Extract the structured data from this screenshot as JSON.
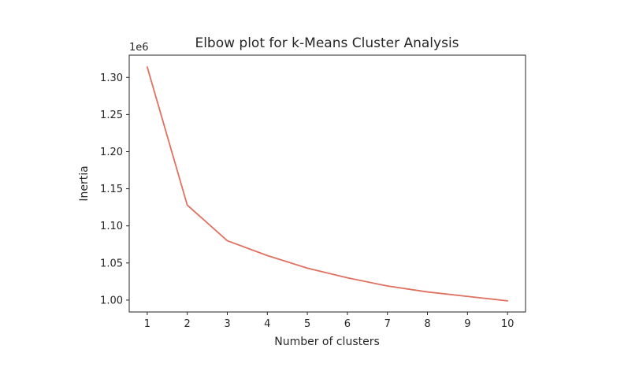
{
  "chart_data": {
    "type": "line",
    "title": "Elbow plot for k-Means Cluster Analysis",
    "xlabel": "Number of clusters",
    "ylabel": "Inertia",
    "y_offset_label": "1e6",
    "x": [
      1,
      2,
      3,
      4,
      5,
      6,
      7,
      8,
      9,
      10
    ],
    "series": [
      {
        "values": [
          1314000,
          1128000,
          1080000,
          1060000,
          1043000,
          1030000,
          1019000,
          1011000,
          1005000,
          999000
        ]
      }
    ],
    "xticks": [
      1,
      2,
      3,
      4,
      5,
      6,
      7,
      8,
      9,
      10
    ],
    "xtick_labels": [
      "1",
      "2",
      "3",
      "4",
      "5",
      "6",
      "7",
      "8",
      "9",
      "10"
    ],
    "yticks": [
      1000000,
      1050000,
      1100000,
      1150000,
      1200000,
      1250000,
      1300000
    ],
    "ytick_labels": [
      "1.00",
      "1.05",
      "1.10",
      "1.15",
      "1.20",
      "1.25",
      "1.30"
    ],
    "xlim": [
      0.55,
      10.45
    ],
    "ylim": [
      984000,
      1330000
    ],
    "grid": false,
    "legend": false,
    "line_color": "#e07060"
  }
}
